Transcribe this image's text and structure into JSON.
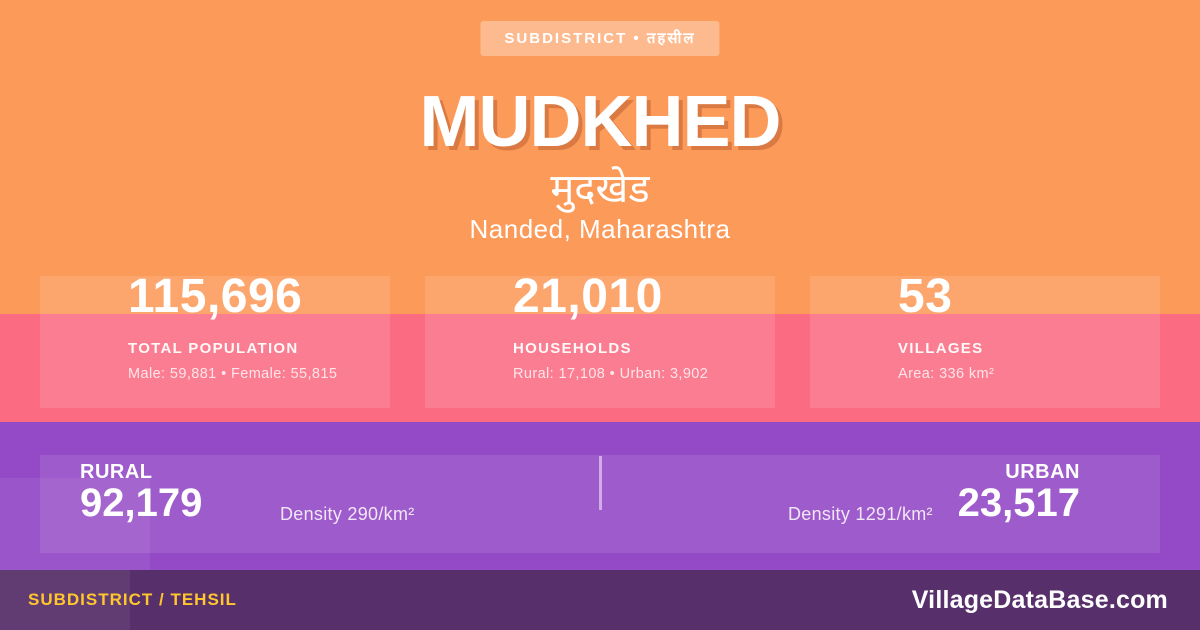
{
  "badge": {
    "label": "SUBDISTRICT • तहसील"
  },
  "header": {
    "title": "MUDKHED",
    "title_native": "मुदखेड",
    "location": "Nanded, Maharashtra"
  },
  "stats": [
    {
      "value": "115,696",
      "label": "TOTAL POPULATION",
      "detail": "Male: 59,881 • Female: 55,815"
    },
    {
      "value": "21,010",
      "label": "HOUSEHOLDS",
      "detail": "Rural: 17,108 • Urban: 3,902"
    },
    {
      "value": "53",
      "label": "VILLAGES",
      "detail": "Area: 336 km²"
    }
  ],
  "split": {
    "rural": {
      "label": "RURAL",
      "value": "92,179",
      "density": "Density 290/km²"
    },
    "urban": {
      "label": "URBAN",
      "value": "23,517",
      "density": "Density 1291/km²"
    }
  },
  "footer": {
    "left": "SUBDISTRICT / TEHSIL",
    "right": "VillageDataBase.com"
  },
  "colors": {
    "orange": "#FC9A59",
    "pink": "#FB6B82",
    "purple": "#9449C6",
    "footer_purple": "#57306B",
    "gold": "#FFC72C",
    "text": "#FFFFFF",
    "title_shadow": "#B25324"
  }
}
